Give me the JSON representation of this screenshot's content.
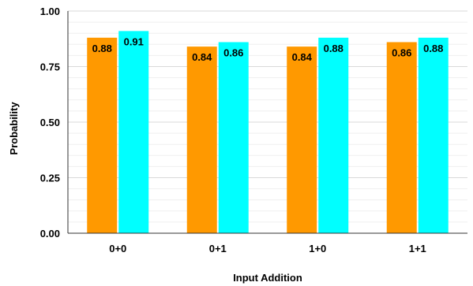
{
  "chart_data": {
    "type": "bar",
    "title": "",
    "xlabel": "Input Addition",
    "ylabel": "Probability",
    "categories": [
      "0+0",
      "0+1",
      "1+0",
      "1+1"
    ],
    "series": [
      {
        "values": [
          0.88,
          0.84,
          0.84,
          0.86
        ],
        "labels": [
          "0.88",
          "0.84",
          "0.84",
          "0.86"
        ],
        "color": "#FF9900"
      },
      {
        "values": [
          0.91,
          0.86,
          0.88,
          0.88
        ],
        "labels": [
          "0.91",
          "0.86",
          "0.88",
          "0.88"
        ],
        "color": "#00FFFF"
      }
    ],
    "ylim": [
      0,
      1
    ],
    "yticks": [
      0,
      0.25,
      0.5,
      0.75,
      1
    ],
    "ytick_labels": [
      "0.00",
      "0.25",
      "0.50",
      "0.75",
      "1.00"
    ],
    "grid": true,
    "legend": "none"
  }
}
